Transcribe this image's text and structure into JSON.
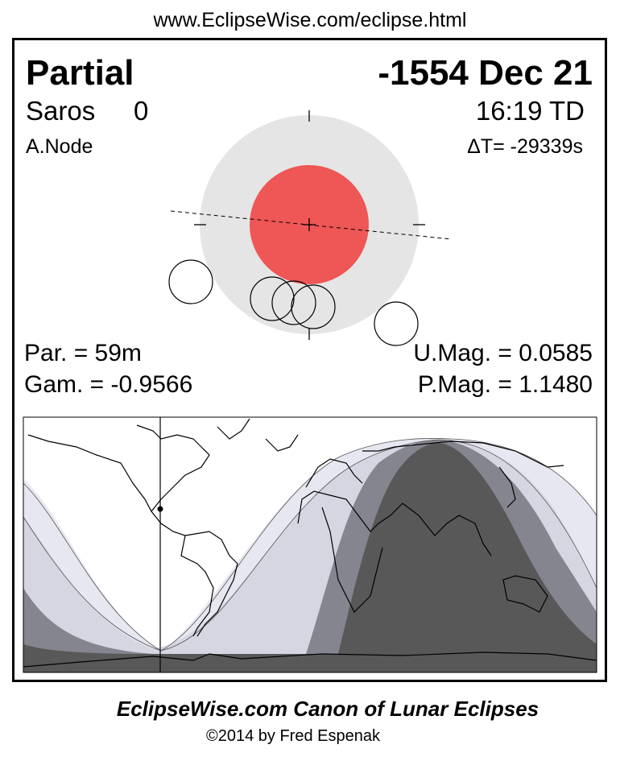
{
  "header": {
    "url": "www.EclipseWise.com/eclipse.html"
  },
  "eclipse": {
    "type": "Partial",
    "date": "-1554 Dec 21",
    "saros_label": "Saros",
    "saros_value": "0",
    "time": "16:19 TD",
    "node": "A.Node",
    "delta_t": "ΔT= -29339s",
    "duration": "Par. =  59m",
    "gamma": "Gam. = -0.9566",
    "umbral_mag": "U.Mag. = 0.0585",
    "penumbral_mag": "P.Mag. = 1.1480"
  },
  "colors": {
    "umbra": "#ef5656",
    "penumbra": "#e5e5e5",
    "map_total_visible": "#585858",
    "map_partial": "#858590",
    "map_penumbral": "#d6d6e2",
    "map_penumbral_outer": "#e7e7f1"
  },
  "footer": {
    "title": "EclipseWise.com Canon of Lunar Eclipses",
    "copyright": "©2014 by Fred Espenak"
  }
}
